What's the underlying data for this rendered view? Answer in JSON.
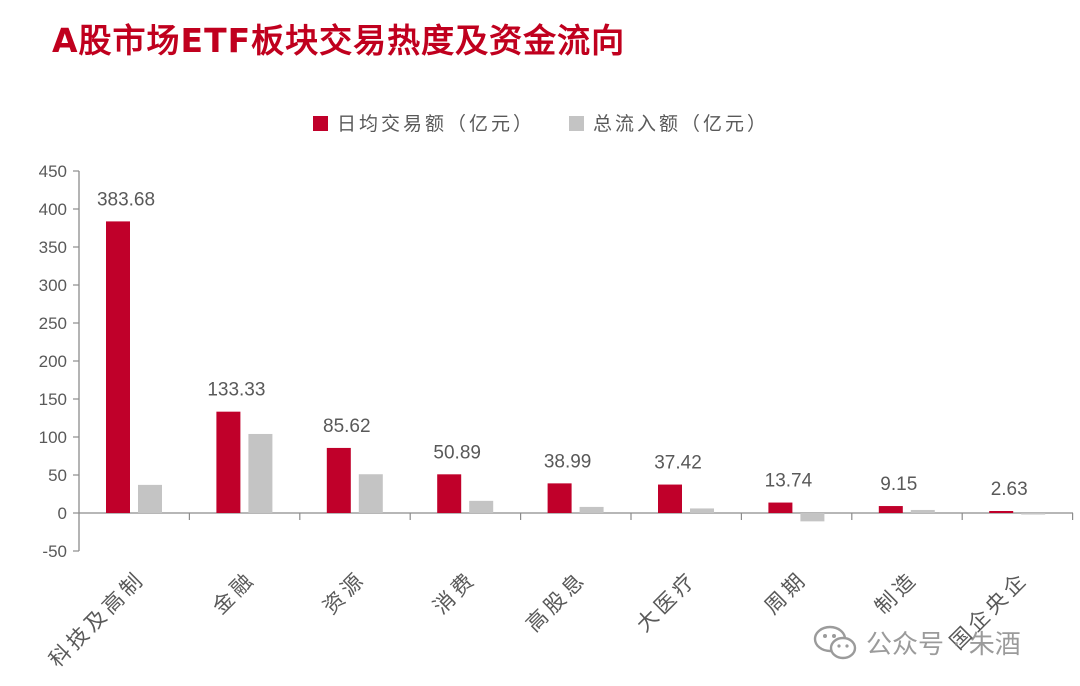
{
  "page_title": "A股市场ETF板块交易热度及资金流向",
  "watermark": {
    "text": "公众号 · 朱酒",
    "icon": "wechat-icon"
  },
  "colors": {
    "title": "#c0001e",
    "series_trade": "#c0002a",
    "series_flow": "#c4c4c4",
    "axis": "#8c8c8c",
    "text": "#595959"
  },
  "chart_data": {
    "type": "bar",
    "title": "",
    "categories": [
      "科技及高制",
      "金融",
      "资源",
      "消费",
      "高股息",
      "大医疗",
      "周期",
      "制造",
      "国企央企"
    ],
    "series": [
      {
        "name": "日均交易额（亿元）",
        "values": [
          383.68,
          133.33,
          85.62,
          50.89,
          38.99,
          37.42,
          13.74,
          9.15,
          2.63
        ],
        "data_labels": [
          "383.68",
          "133.33",
          "85.62",
          "50.89",
          "38.99",
          "37.42",
          "13.74",
          "9.15",
          "2.63"
        ]
      },
      {
        "name": "总流入额（亿元）",
        "values": [
          37,
          104,
          51,
          16,
          8,
          6,
          -11,
          4,
          -2
        ]
      }
    ],
    "yticks": [
      "450",
      "400",
      "350",
      "300",
      "250",
      "200",
      "150",
      "100",
      "50",
      "0",
      "-50"
    ],
    "ylim": [
      -50,
      450
    ],
    "xlabel": "",
    "ylabel": "",
    "grid": false,
    "legend_position": "top"
  }
}
